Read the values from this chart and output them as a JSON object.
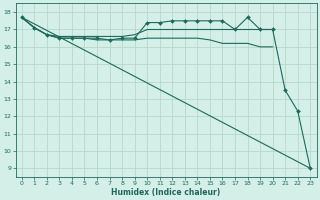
{
  "xlabel": "Humidex (Indice chaleur)",
  "bg_color": "#d4eee8",
  "grid_color": "#b8d8cc",
  "line_color": "#1a6b5a",
  "xlim": [
    -0.5,
    23.5
  ],
  "ylim": [
    8.5,
    18.5
  ],
  "yticks": [
    9,
    10,
    11,
    12,
    13,
    14,
    15,
    16,
    17,
    18
  ],
  "xticks": [
    0,
    1,
    2,
    3,
    4,
    5,
    6,
    7,
    8,
    9,
    10,
    11,
    12,
    13,
    14,
    15,
    16,
    17,
    18,
    19,
    20,
    21,
    22,
    23
  ],
  "series1_x": [
    0,
    1,
    2,
    3,
    4,
    5,
    6,
    7,
    8,
    9,
    10,
    11,
    12,
    13,
    14,
    15,
    16,
    17,
    18,
    19,
    20,
    21,
    22,
    23
  ],
  "series1_y": [
    17.7,
    17.1,
    16.7,
    16.5,
    16.5,
    16.5,
    16.5,
    16.4,
    16.5,
    16.5,
    17.4,
    17.4,
    17.5,
    17.5,
    17.5,
    17.5,
    17.5,
    17.0,
    17.7,
    17.0,
    17.0,
    13.5,
    12.3,
    9.0
  ],
  "series2_x": [
    0,
    1,
    2,
    3,
    4,
    5,
    6,
    7,
    8,
    9,
    10,
    11,
    12,
    13,
    14,
    15,
    16,
    17,
    18,
    19,
    20
  ],
  "series2_y": [
    17.7,
    17.1,
    16.7,
    16.6,
    16.6,
    16.6,
    16.6,
    16.6,
    16.6,
    16.7,
    17.0,
    17.0,
    17.0,
    17.0,
    17.0,
    17.0,
    17.0,
    17.0,
    17.0,
    17.0,
    17.0
  ],
  "series3_x": [
    0,
    1,
    2,
    3,
    4,
    5,
    6,
    7,
    8,
    9,
    10,
    11,
    12,
    13,
    14,
    15,
    16,
    17,
    18,
    19,
    20
  ],
  "series3_y": [
    17.7,
    17.1,
    16.7,
    16.5,
    16.5,
    16.5,
    16.4,
    16.4,
    16.4,
    16.4,
    16.5,
    16.5,
    16.5,
    16.5,
    16.5,
    16.4,
    16.2,
    16.2,
    16.2,
    16.0,
    16.0
  ],
  "series4_x": [
    0,
    23
  ],
  "series4_y": [
    17.7,
    9.0
  ]
}
